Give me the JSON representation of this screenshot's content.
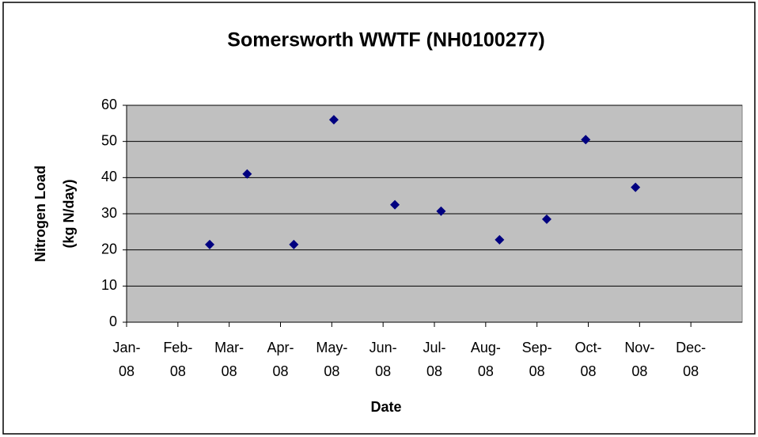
{
  "chart_data": {
    "type": "scatter",
    "title": "Somersworth WWTF (NH0100277)",
    "x_label": "Date",
    "y_label": [
      "Nitrogen Load",
      "(kg N/day)"
    ],
    "x": [
      1.62,
      2.35,
      3.26,
      4.04,
      5.23,
      6.13,
      7.27,
      8.19,
      8.95,
      9.92
    ],
    "values": [
      21.5,
      41,
      21.5,
      56,
      32.5,
      30.7,
      22.8,
      28.5,
      50.5,
      37.3
    ],
    "color": "#000080",
    "xlim": [
      0,
      12
    ],
    "xticks": [
      {
        "value": 0,
        "label": "Jan-08"
      },
      {
        "value": 1,
        "label": "Feb-08"
      },
      {
        "value": 2,
        "label": "Mar-08"
      },
      {
        "value": 3,
        "label": "Apr-08"
      },
      {
        "value": 4,
        "label": "May-08"
      },
      {
        "value": 5,
        "label": "Jun-08"
      },
      {
        "value": 6,
        "label": "Jul-08"
      },
      {
        "value": 7,
        "label": "Aug-08"
      },
      {
        "value": 8,
        "label": "Sep-08"
      },
      {
        "value": 9,
        "label": "Oct-08"
      },
      {
        "value": 10,
        "label": "Nov-08"
      },
      {
        "value": 11,
        "label": "Dec-08"
      }
    ],
    "ylim": [
      0,
      60
    ],
    "yticks": [
      0,
      10,
      20,
      30,
      40,
      50,
      60
    ],
    "grid": true
  }
}
